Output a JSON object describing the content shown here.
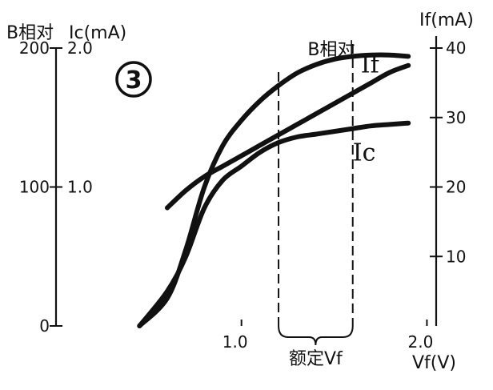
{
  "chart_data": {
    "type": "line",
    "panel_label": "3",
    "x": {
      "label": "Vf(V)",
      "ticks": [
        1.0,
        2.0
      ],
      "tick_labels": [
        "1.0",
        "2.0"
      ],
      "range": [
        0,
        2.05
      ]
    },
    "y_left_outer": {
      "label": "B相对",
      "ticks": [
        0,
        100,
        200
      ],
      "tick_labels": [
        "0",
        "100",
        "200"
      ],
      "range": [
        0,
        200
      ]
    },
    "y_left_inner": {
      "label": "Ic(mA)",
      "ticks": [
        1.0,
        2.0
      ],
      "tick_labels": [
        "1.0",
        "2.0"
      ],
      "range": [
        0,
        2.0
      ]
    },
    "y_right": {
      "label": "If(mA)",
      "ticks": [
        10,
        20,
        30,
        40
      ],
      "tick_labels": [
        "10",
        "20",
        "30",
        "40"
      ],
      "range": [
        0,
        40
      ]
    },
    "rated_vf": {
      "label": "额定Vf",
      "range": [
        1.2,
        1.6
      ]
    },
    "series": [
      {
        "name": "B相对",
        "axis": "y_left_outer",
        "points": [
          [
            0.45,
            0
          ],
          [
            0.6,
            20
          ],
          [
            0.7,
            55
          ],
          [
            0.8,
            100
          ],
          [
            0.9,
            130
          ],
          [
            1.0,
            148
          ],
          [
            1.1,
            162
          ],
          [
            1.2,
            173
          ],
          [
            1.3,
            182
          ],
          [
            1.4,
            188
          ],
          [
            1.5,
            192
          ],
          [
            1.6,
            194
          ],
          [
            1.7,
            195
          ],
          [
            1.8,
            195
          ],
          [
            1.9,
            194
          ]
        ]
      },
      {
        "name": "If",
        "axis": "y_right",
        "points": [
          [
            0.6,
            17
          ],
          [
            0.7,
            19.5
          ],
          [
            0.8,
            21.5
          ],
          [
            0.9,
            23
          ],
          [
            1.0,
            24.5
          ],
          [
            1.1,
            26
          ],
          [
            1.2,
            27.5
          ],
          [
            1.3,
            29
          ],
          [
            1.4,
            30.5
          ],
          [
            1.5,
            32
          ],
          [
            1.6,
            33.5
          ],
          [
            1.7,
            35
          ],
          [
            1.8,
            36.5
          ],
          [
            1.9,
            37.5
          ]
        ]
      },
      {
        "name": "Ic",
        "axis": "y_left_inner",
        "points": [
          [
            0.45,
            0.0
          ],
          [
            0.6,
            0.25
          ],
          [
            0.7,
            0.5
          ],
          [
            0.8,
            0.85
          ],
          [
            0.9,
            1.05
          ],
          [
            1.0,
            1.15
          ],
          [
            1.1,
            1.25
          ],
          [
            1.2,
            1.32
          ],
          [
            1.3,
            1.36
          ],
          [
            1.4,
            1.38
          ],
          [
            1.5,
            1.4
          ],
          [
            1.6,
            1.42
          ],
          [
            1.7,
            1.44
          ],
          [
            1.8,
            1.45
          ],
          [
            1.9,
            1.46
          ]
        ]
      }
    ]
  }
}
